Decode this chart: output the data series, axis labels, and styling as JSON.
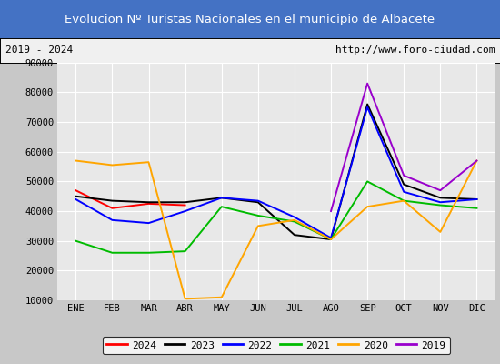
{
  "title": "Evolucion Nº Turistas Nacionales en el municipio de Albacete",
  "subtitle_left": "2019 - 2024",
  "subtitle_right": "http://www.foro-ciudad.com",
  "title_bg_color": "#4472c4",
  "title_text_color": "#ffffff",
  "months": [
    "ENE",
    "FEB",
    "MAR",
    "ABR",
    "MAY",
    "JUN",
    "JUL",
    "AGO",
    "SEP",
    "OCT",
    "NOV",
    "DIC"
  ],
  "ylim": [
    10000,
    90000
  ],
  "yticks": [
    10000,
    20000,
    30000,
    40000,
    50000,
    60000,
    70000,
    80000,
    90000
  ],
  "series": {
    "2024": {
      "color": "#ff0000",
      "values": [
        47000,
        41000,
        42500,
        42000,
        null,
        null,
        null,
        null,
        null,
        null,
        null,
        null
      ]
    },
    "2023": {
      "color": "#000000",
      "values": [
        45000,
        43500,
        43000,
        43000,
        44500,
        43000,
        32000,
        30500,
        76000,
        49000,
        44500,
        44000
      ]
    },
    "2022": {
      "color": "#0000ff",
      "values": [
        44000,
        37000,
        36000,
        40000,
        44500,
        43500,
        38000,
        31000,
        75000,
        46500,
        43000,
        44000
      ]
    },
    "2021": {
      "color": "#00bb00",
      "values": [
        30000,
        26000,
        26000,
        26500,
        41500,
        38500,
        36500,
        30500,
        50000,
        43500,
        42000,
        41000
      ]
    },
    "2020": {
      "color": "#ffa500",
      "values": [
        57000,
        55500,
        56500,
        10500,
        11000,
        35000,
        37000,
        30500,
        41500,
        43500,
        33000,
        57000
      ]
    },
    "2019": {
      "color": "#9900cc",
      "values": [
        null,
        null,
        null,
        null,
        null,
        null,
        null,
        40000,
        83000,
        52000,
        47000,
        57000
      ]
    }
  },
  "legend_order": [
    "2024",
    "2023",
    "2022",
    "2021",
    "2020",
    "2019"
  ],
  "outer_bg": "#c8c8c8",
  "plot_bg": "#e8e8e8",
  "grid_color": "#ffffff"
}
